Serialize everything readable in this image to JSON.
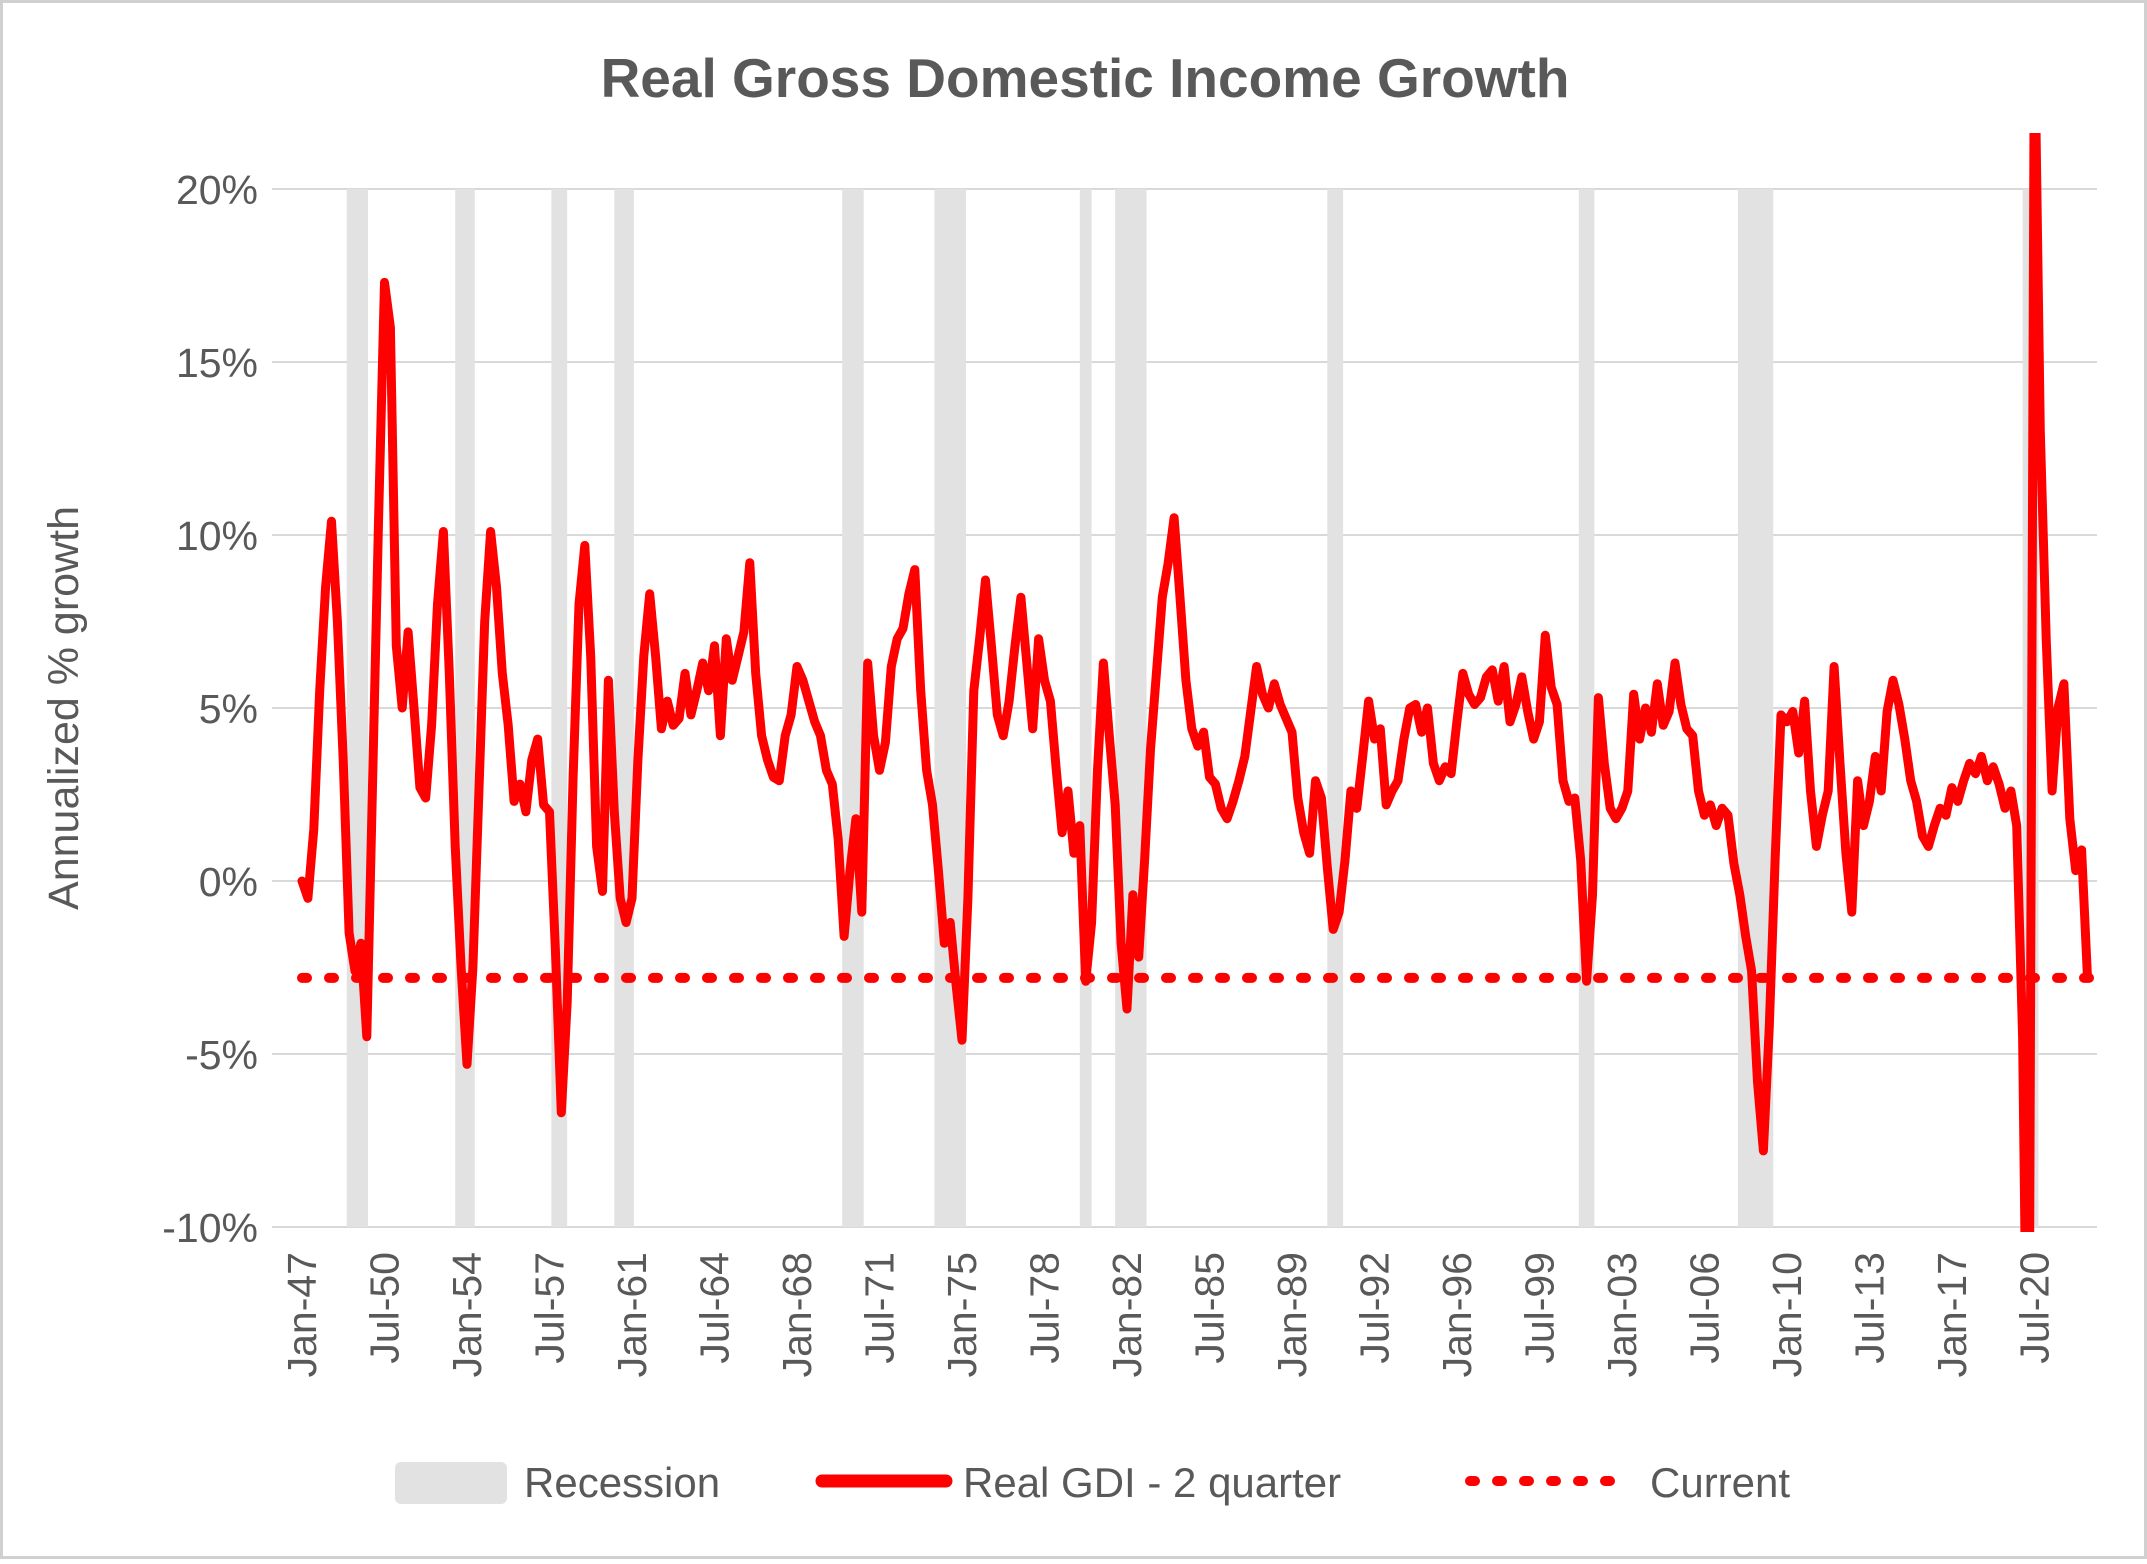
{
  "chart_data": {
    "type": "line",
    "title": "Real Gross Domestic Income Growth",
    "ylabel": "Annualized % growth",
    "ylim": [
      -10,
      20
    ],
    "y_ticks": [
      20,
      15,
      10,
      5,
      0,
      -5,
      -10
    ],
    "y_tick_suffix": "%",
    "grid": "horizontal-only",
    "x_tick_labels": [
      "Jan-47",
      "Jul-50",
      "Jan-54",
      "Jul-57",
      "Jan-61",
      "Jul-64",
      "Jan-68",
      "Jul-71",
      "Jan-75",
      "Jul-78",
      "Jan-82",
      "Jul-85",
      "Jan-89",
      "Jul-92",
      "Jan-96",
      "Jul-99",
      "Jan-03",
      "Jul-06",
      "Jan-10",
      "Jul-13",
      "Jan-17",
      "Jul-20"
    ],
    "x_tick_interval_quarters": 14,
    "x_start_year": 1947,
    "legend": [
      "Recession",
      "Real GDI - 2 quarter",
      "Current"
    ],
    "legend_position": "bottom",
    "colors": {
      "line": "#FF0000",
      "current": "#FF0000",
      "recession_band": "#E2E2E2",
      "gridline": "#D9D9D9",
      "text": "#595959",
      "background": "#FFFFFF",
      "border": "#D0D0D0"
    },
    "current_value": -2.8,
    "recessions": {
      "label": "Recession",
      "periods_decimal_years": [
        [
          1948.9,
          1949.8
        ],
        [
          1953.5,
          1954.33
        ],
        [
          1957.58,
          1958.25
        ],
        [
          1960.25,
          1961.08
        ],
        [
          1969.92,
          1970.83
        ],
        [
          1973.83,
          1975.17
        ],
        [
          1980.0,
          1980.5
        ],
        [
          1981.5,
          1982.83
        ],
        [
          1990.5,
          1991.17
        ],
        [
          2001.17,
          2001.83
        ],
        [
          2007.92,
          2009.42
        ],
        [
          2020.0,
          2020.67
        ]
      ]
    },
    "series": [
      {
        "name": "Real GDI - 2 quarter",
        "frequency": "quarterly",
        "start": "1947Q1",
        "values": [
          0.0,
          -0.5,
          1.5,
          5.5,
          8.5,
          10.4,
          7.5,
          3.5,
          -1.5,
          -2.6,
          -1.8,
          -4.5,
          3.0,
          10.5,
          17.3,
          16.0,
          6.8,
          5.0,
          7.2,
          5.0,
          2.7,
          2.4,
          4.5,
          8.0,
          10.1,
          6.0,
          1.0,
          -2.5,
          -5.3,
          -2.5,
          2.5,
          7.5,
          10.1,
          8.5,
          6.0,
          4.5,
          2.3,
          2.8,
          2.0,
          3.5,
          4.1,
          2.2,
          2.0,
          -2.0,
          -6.7,
          -3.5,
          3.0,
          8.0,
          9.7,
          6.5,
          1.0,
          -0.3,
          5.8,
          2.0,
          -0.5,
          -1.2,
          -0.5,
          3.5,
          6.5,
          8.3,
          6.5,
          4.4,
          5.2,
          4.5,
          4.7,
          6.0,
          4.8,
          5.5,
          6.3,
          5.5,
          6.8,
          4.2,
          7.0,
          5.8,
          6.5,
          7.2,
          9.2,
          6.0,
          4.2,
          3.5,
          3.0,
          2.9,
          4.2,
          4.8,
          6.2,
          5.8,
          5.2,
          4.6,
          4.2,
          3.2,
          2.8,
          1.2,
          -1.6,
          0.3,
          1.8,
          -0.9,
          6.3,
          4.2,
          3.2,
          4.0,
          6.2,
          7.0,
          7.3,
          8.3,
          9.0,
          5.5,
          3.2,
          2.2,
          0.3,
          -1.8,
          -1.2,
          -3.0,
          -4.6,
          -0.5,
          5.5,
          7.0,
          8.7,
          6.8,
          4.8,
          4.2,
          5.2,
          6.8,
          8.2,
          6.3,
          4.4,
          7.0,
          5.8,
          5.2,
          3.2,
          1.4,
          2.6,
          0.8,
          1.6,
          -2.9,
          -1.2,
          3.2,
          6.3,
          4.2,
          2.2,
          -1.8,
          -3.7,
          -0.4,
          -2.2,
          0.6,
          3.8,
          6.0,
          8.2,
          9.2,
          10.5,
          8.2,
          5.8,
          4.4,
          3.9,
          4.3,
          3.0,
          2.8,
          2.1,
          1.8,
          2.3,
          2.9,
          3.6,
          4.9,
          6.2,
          5.4,
          5.0,
          5.7,
          5.1,
          4.7,
          4.3,
          2.4,
          1.4,
          0.8,
          2.9,
          2.4,
          0.4,
          -1.4,
          -0.9,
          0.6,
          2.6,
          2.1,
          3.6,
          5.2,
          4.1,
          4.4,
          2.2,
          2.6,
          2.9,
          4.1,
          5.0,
          5.1,
          4.3,
          5.0,
          3.4,
          2.9,
          3.3,
          3.1,
          4.6,
          6.0,
          5.4,
          5.1,
          5.3,
          5.9,
          6.1,
          5.2,
          6.2,
          4.6,
          5.1,
          5.9,
          4.9,
          4.1,
          4.6,
          7.1,
          5.6,
          5.1,
          2.9,
          2.3,
          2.4,
          0.6,
          -2.9,
          -0.4,
          5.3,
          3.4,
          2.1,
          1.8,
          2.1,
          2.6,
          5.4,
          4.1,
          5.0,
          4.3,
          5.7,
          4.5,
          4.9,
          6.3,
          5.1,
          4.4,
          4.2,
          2.6,
          1.9,
          2.2,
          1.6,
          2.1,
          1.9,
          0.5,
          -0.4,
          -1.6,
          -2.6,
          -5.8,
          -7.8,
          -4.2,
          0.6,
          4.8,
          4.6,
          4.9,
          3.7,
          5.2,
          2.6,
          1.0,
          1.9,
          2.6,
          6.2,
          3.4,
          0.8,
          -0.9,
          2.9,
          1.6,
          2.3,
          3.6,
          2.6,
          4.9,
          5.8,
          5.1,
          4.1,
          2.9,
          2.3,
          1.3,
          1.0,
          1.6,
          2.1,
          1.9,
          2.7,
          2.3,
          2.9,
          3.4,
          3.1,
          3.6,
          2.9,
          3.3,
          2.8,
          2.1,
          2.6,
          1.6,
          -4.5,
          -19.0,
          25.0,
          13.0,
          7.0,
          2.6,
          5.0,
          5.7,
          1.8,
          0.3,
          0.9,
          -2.8
        ]
      },
      {
        "name": "Current",
        "style": "dotted",
        "value": -2.8
      }
    ]
  }
}
